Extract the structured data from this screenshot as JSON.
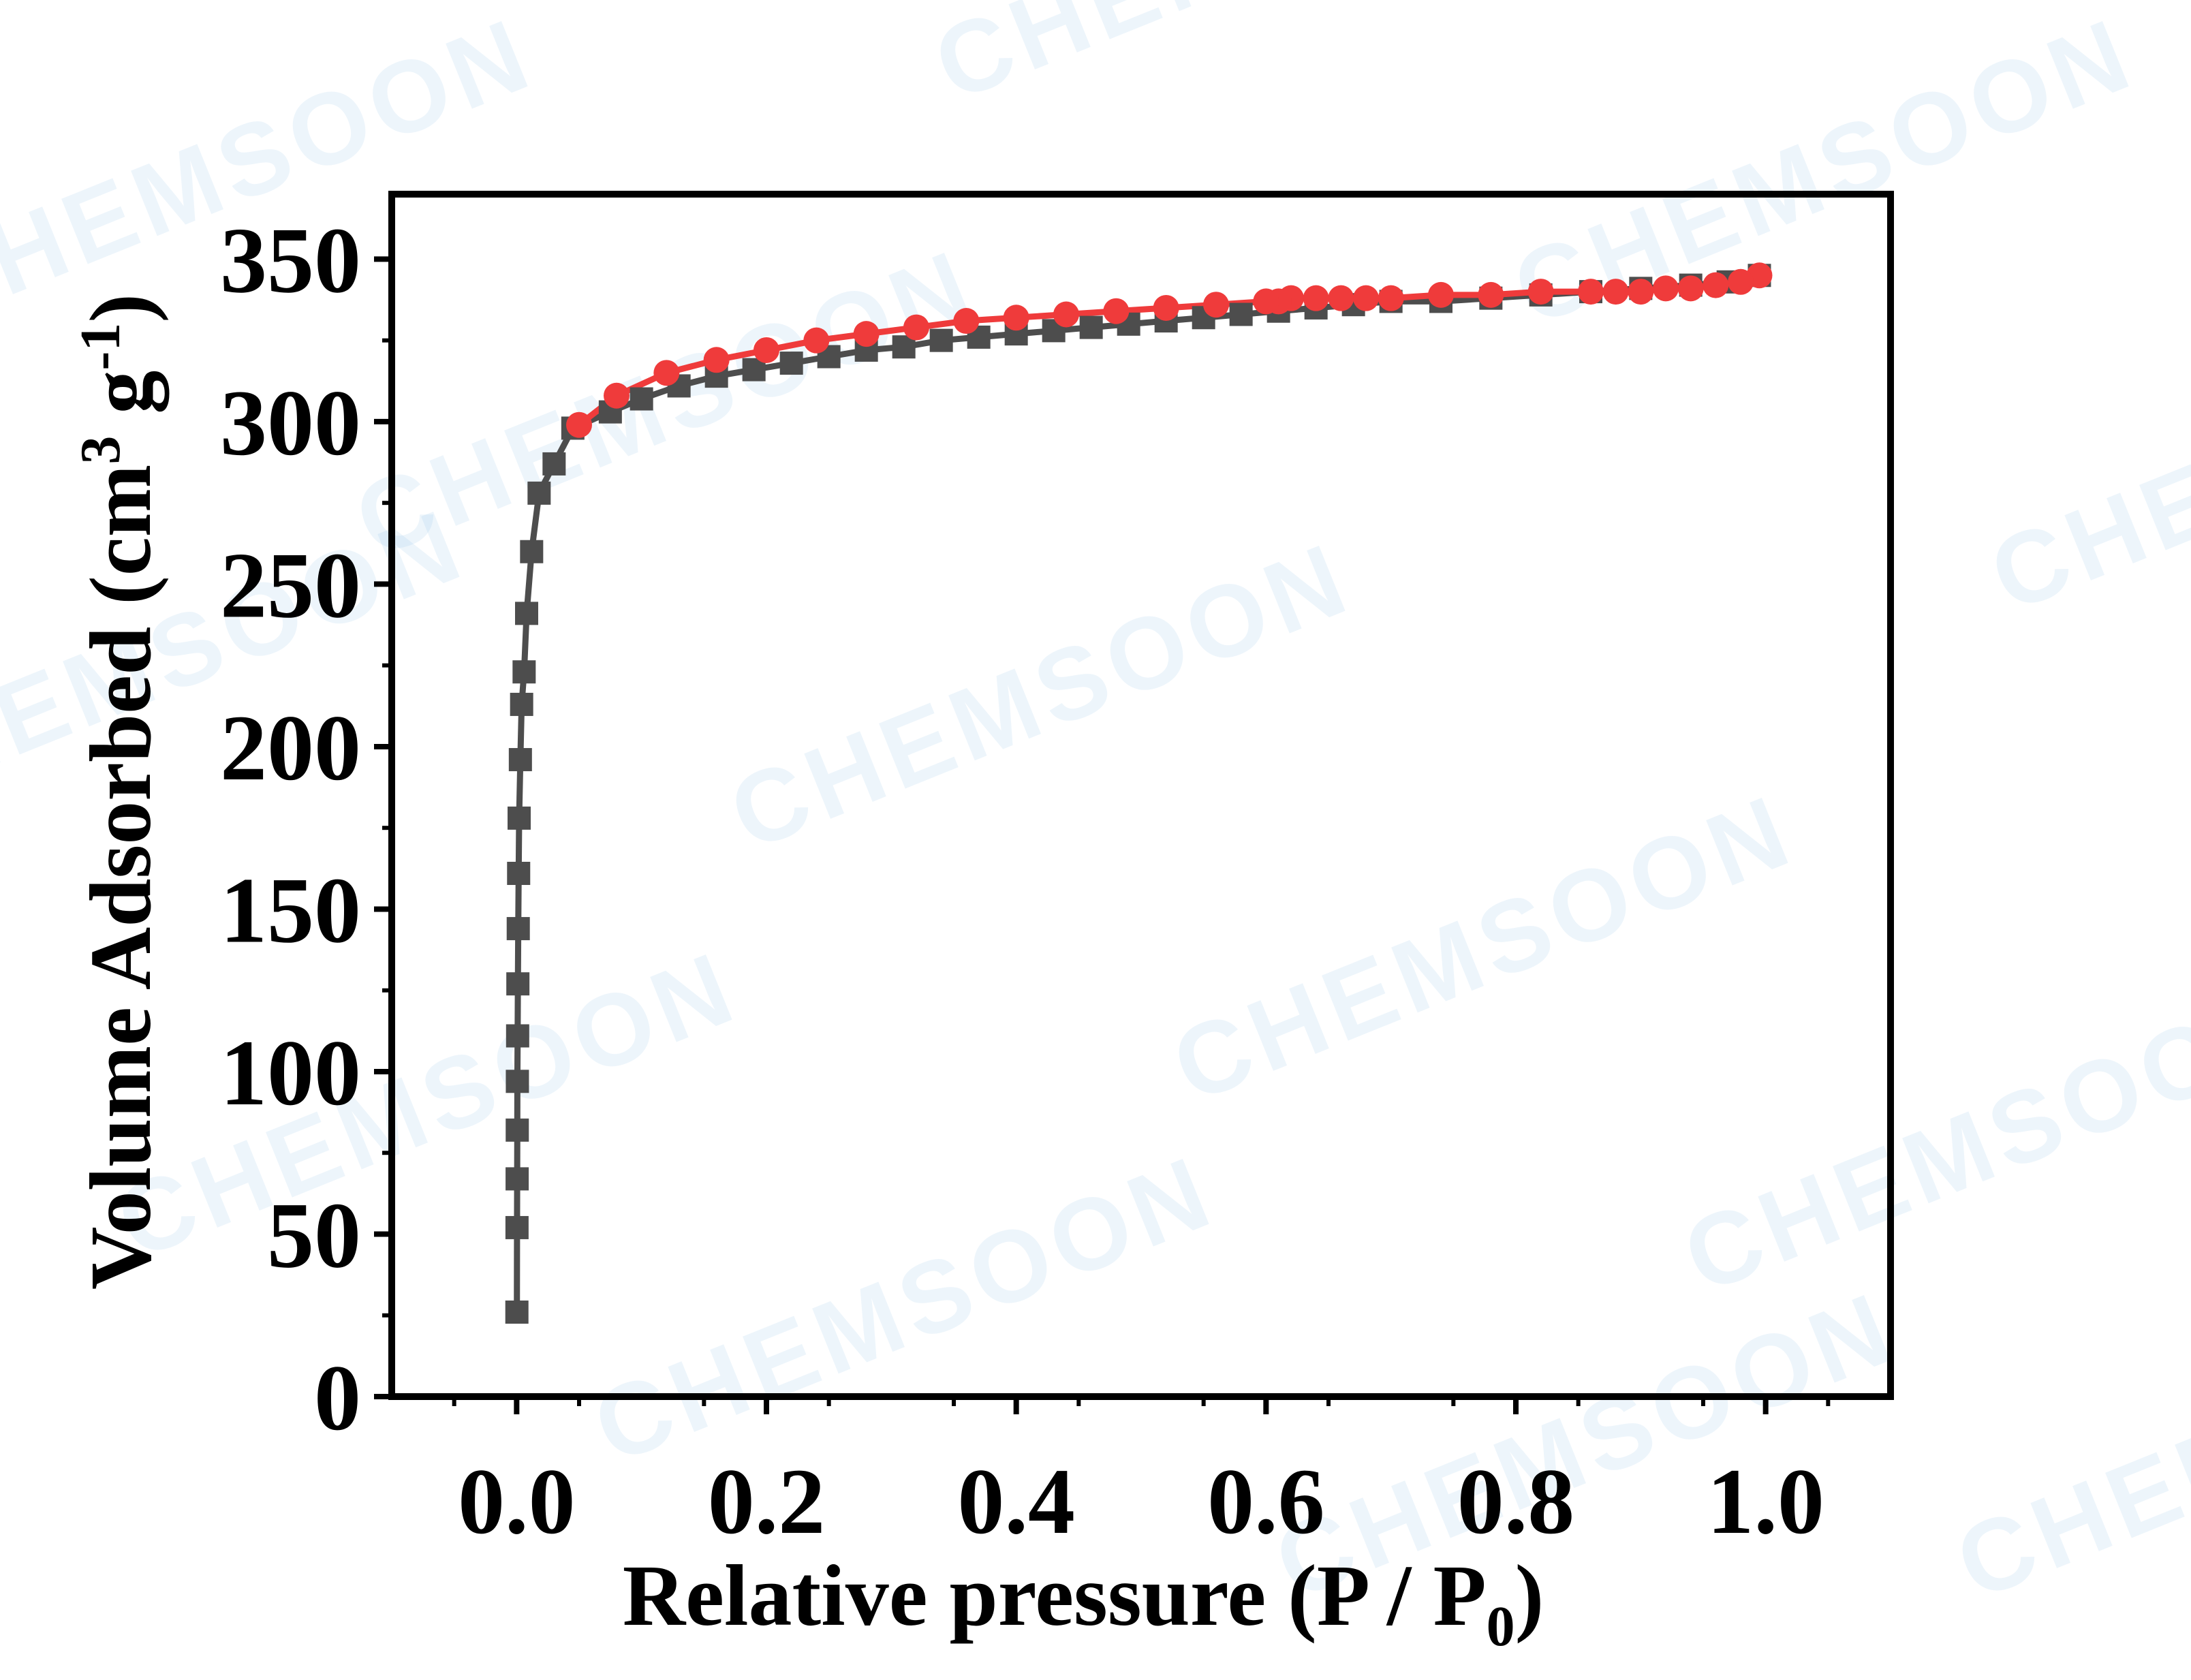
{
  "watermark_text": "CHEMSOON",
  "colors": {
    "adsorption": "#4d4d4d",
    "desorption": "#ef3b3b",
    "axes": "#000000",
    "watermark": "#2f8fd8"
  },
  "chart_data": {
    "type": "line",
    "xlabel_main": "Relative pressure (P / P",
    "xlabel_sub": "0",
    "xlabel_end": ")",
    "ylabel_main": "Volume Adsorbed (cm",
    "ylabel_sup1": "3",
    "ylabel_mid": " g",
    "ylabel_sup2": "-1",
    "ylabel_end": ")",
    "xlim": [
      -0.1,
      1.1
    ],
    "ylim": [
      0,
      370
    ],
    "xticks": [
      0.0,
      0.2,
      0.4,
      0.6,
      0.8,
      1.0
    ],
    "xtick_labels": [
      "0.0",
      "0.2",
      "0.4",
      "0.6",
      "0.8",
      "1.0"
    ],
    "yticks": [
      0,
      50,
      100,
      150,
      200,
      250,
      300,
      350
    ],
    "ytick_labels": [
      "0",
      "50",
      "100",
      "150",
      "200",
      "250",
      "300",
      "350"
    ],
    "grid": false,
    "legend": "none",
    "series": [
      {
        "marker": "square",
        "color": "#4d4d4d",
        "x": [
          0.0002,
          0.0003,
          0.0004,
          0.0005,
          0.0006,
          0.0008,
          0.001,
          0.0013,
          0.0016,
          0.002,
          0.003,
          0.004,
          0.006,
          0.008,
          0.012,
          0.018,
          0.03,
          0.045,
          0.075,
          0.1,
          0.13,
          0.16,
          0.19,
          0.22,
          0.25,
          0.28,
          0.31,
          0.34,
          0.37,
          0.4,
          0.43,
          0.46,
          0.49,
          0.52,
          0.55,
          0.58,
          0.61,
          0.64,
          0.67,
          0.7,
          0.74,
          0.78,
          0.82,
          0.86,
          0.9,
          0.94,
          0.97,
          0.995
        ],
        "y": [
          26,
          52,
          67,
          82,
          97,
          111,
          127,
          144,
          161,
          178,
          196,
          213,
          223,
          241,
          260,
          278,
          287,
          298,
          303,
          307,
          311,
          314,
          316,
          318,
          320,
          322,
          323,
          325,
          326,
          327,
          328,
          329,
          330,
          331,
          332,
          333,
          334,
          335,
          336,
          337,
          337,
          338,
          339,
          340,
          341,
          342,
          343,
          345
        ]
      },
      {
        "marker": "circle",
        "color": "#ef3b3b",
        "x": [
          0.995,
          0.98,
          0.96,
          0.94,
          0.92,
          0.9,
          0.88,
          0.86,
          0.82,
          0.78,
          0.74,
          0.7,
          0.68,
          0.66,
          0.64,
          0.62,
          0.61,
          0.6,
          0.56,
          0.52,
          0.48,
          0.44,
          0.4,
          0.36,
          0.32,
          0.28,
          0.24,
          0.2,
          0.16,
          0.12,
          0.08,
          0.05
        ],
        "y": [
          345,
          343,
          342,
          341,
          341,
          340,
          340,
          340,
          340,
          339,
          339,
          338,
          338,
          338,
          338,
          338,
          337,
          337,
          336,
          335,
          334,
          333,
          332,
          331,
          329,
          327,
          325,
          322,
          319,
          315,
          308,
          299
        ]
      }
    ]
  }
}
